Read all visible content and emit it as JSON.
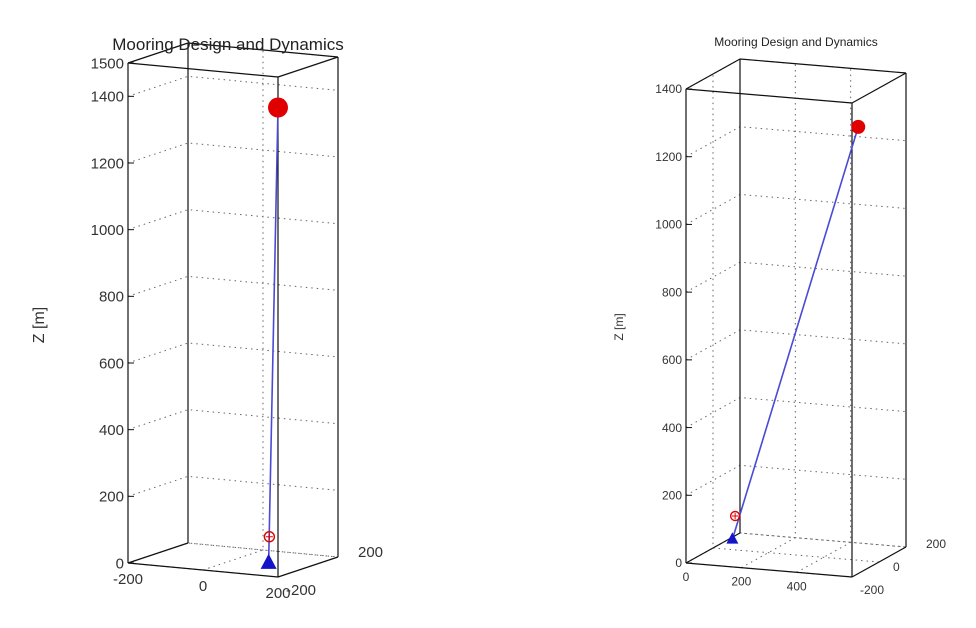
{
  "colors": {
    "line": "#4a4ad6",
    "buoy": "#e00000",
    "float_marker": "#e00000",
    "anchor": "#1414c8",
    "axes": "#111111",
    "grid": "#666666"
  },
  "chart_data": [
    {
      "type": "line3d",
      "title": "Mooring Design and Dynamics",
      "xlabel": "",
      "ylabel": "",
      "zlabel": "Z [m]",
      "grid": true,
      "xlim": [
        -200,
        200
      ],
      "ylim": [
        -200,
        200
      ],
      "zlim": [
        0,
        1500
      ],
      "x_ticks": [
        -200,
        0,
        200
      ],
      "y_ticks": [
        -200,
        200
      ],
      "z_ticks": [
        0,
        200,
        400,
        600,
        800,
        1000,
        1200,
        1400,
        1500
      ],
      "x_tick_labels": [
        "-200",
        "0",
        "200"
      ],
      "y_tick_labels": [
        "-200",
        "200"
      ],
      "z_tick_labels": [
        "0",
        "200",
        "400",
        "600",
        "800",
        "1000",
        "1200",
        "1400",
        "1500"
      ],
      "mooring_line": {
        "x": [
          95,
          120
        ],
        "y": [
          0,
          0
        ],
        "z": [
          0,
          1370
        ]
      },
      "top_buoy": {
        "x": 120,
        "y": 0,
        "z": 1370
      },
      "float_marker": {
        "x": 97,
        "y": 0,
        "z": 80
      },
      "anchor": {
        "x": 95,
        "y": 0,
        "z": 0
      }
    },
    {
      "type": "line3d",
      "title": "Mooring Design and Dynamics",
      "xlabel": "",
      "ylabel": "",
      "zlabel": "Z [m]",
      "grid": true,
      "xlim": [
        0,
        600
      ],
      "ylim": [
        -200,
        200
      ],
      "zlim": [
        0,
        1400
      ],
      "x_ticks": [
        0,
        200,
        400
      ],
      "y_ticks": [
        -200,
        0,
        200
      ],
      "z_ticks": [
        0,
        200,
        400,
        600,
        800,
        1000,
        1200,
        1400
      ],
      "x_tick_labels": [
        "0",
        "200",
        "400"
      ],
      "y_tick_labels": [
        "-200",
        "0",
        "200"
      ],
      "z_tick_labels": [
        "0",
        "200",
        "400",
        "600",
        "800",
        "1000",
        "1200",
        "1400"
      ],
      "mooring_line": {
        "x": [
          70,
          525
        ],
        "y": [
          0,
          0
        ],
        "z": [
          30,
          1280
        ]
      },
      "top_buoy": {
        "x": 525,
        "y": 0,
        "z": 1280
      },
      "float_marker": {
        "x": 80,
        "y": 0,
        "z": 100
      },
      "anchor": {
        "x": 70,
        "y": 0,
        "z": 30
      }
    }
  ]
}
